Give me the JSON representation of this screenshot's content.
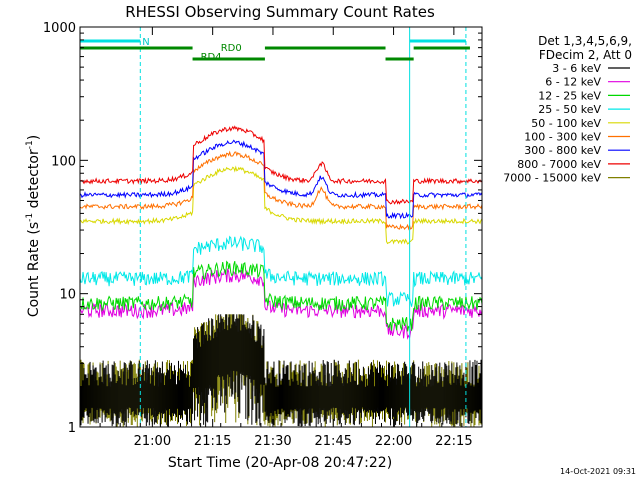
{
  "chart_data": {
    "type": "line",
    "title": "RHESSI Observing Summary Count Rates",
    "xlabel": "Start Time (20-Apr-08 20:47:22)",
    "ylabel_main": "Count Rate (s",
    "ylabel_sup1": "-1",
    "ylabel_mid": " detector",
    "ylabel_sup2": "-1",
    "ylabel_end": ")",
    "y_log": true,
    "ylim": [
      1,
      1000
    ],
    "x_range_minutes": [
      -5,
      95
    ],
    "x_ticks": [
      {
        "minute": 13,
        "label": "21:00"
      },
      {
        "minute": 28,
        "label": "21:15"
      },
      {
        "minute": 43,
        "label": "21:30"
      },
      {
        "minute": 58,
        "label": "21:45"
      },
      {
        "minute": 73,
        "label": "22:00"
      },
      {
        "minute": 88,
        "label": "22:15"
      }
    ],
    "y_ticks": [
      {
        "value": 1,
        "label": "1"
      },
      {
        "value": 10,
        "label": "10"
      },
      {
        "value": 100,
        "label": "100"
      },
      {
        "value": 1000,
        "label": "1000"
      }
    ],
    "legend": {
      "placement": "right",
      "header": [
        "Det 1,3,4,5,6,9,",
        "FDecim 2, Att 0"
      ]
    },
    "timestamp": "14-Oct-2021 09:31",
    "grid": false,
    "night_boundaries_minutes": [
      -5,
      10,
      77,
      91
    ],
    "night_label": "N",
    "night_bars_minutes": [
      [
        -5,
        10
      ],
      [
        77,
        91
      ]
    ],
    "saa_bars_minutes": [
      [
        -5,
        23
      ],
      [
        41,
        71
      ],
      [
        78,
        92
      ]
    ],
    "saa_labels": [
      {
        "minute": 25,
        "label": "RD4"
      },
      {
        "minute": 30,
        "label": "RD0"
      }
    ],
    "series": [
      {
        "name": "3 - 6 keV",
        "color": "#000000",
        "style": "noise_low"
      },
      {
        "name": "6 - 12 keV",
        "color": "#e000e0",
        "base": 7.5
      },
      {
        "name": "12 - 25 keV",
        "color": "#00d800",
        "base": 8.5
      },
      {
        "name": "25 - 50 keV",
        "color": "#00e8e8",
        "base": 13
      },
      {
        "name": "50 - 100 keV",
        "color": "#d8d800",
        "base": 35
      },
      {
        "name": "100 - 300 keV",
        "color": "#ff7000",
        "base": 45
      },
      {
        "name": "300 - 800 keV",
        "color": "#0000ff",
        "base": 55
      },
      {
        "name": "800 - 7000 keV",
        "color": "#ee0000",
        "base": 70
      },
      {
        "name": "7000 - 15000 keV",
        "color": "#808000",
        "style": "noise_low"
      }
    ]
  }
}
